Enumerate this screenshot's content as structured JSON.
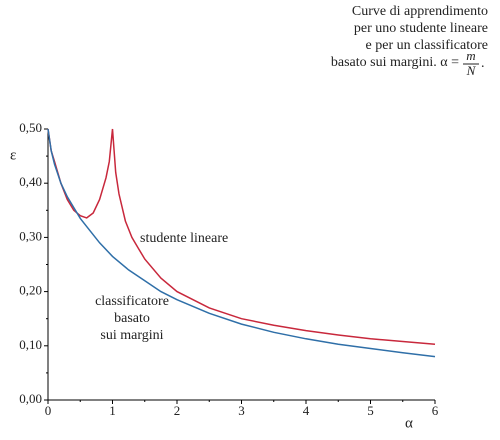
{
  "chart_data": {
    "type": "line",
    "title": [
      "Curve di apprendimento",
      "per uno studente lineare",
      "e per un classificatore",
      "basato sui margini. α ="
    ],
    "title_formula": {
      "numerator": "m",
      "denominator": "N",
      "end": "."
    },
    "xlabel": "α",
    "ylabel": "ε",
    "xlim": [
      0,
      6
    ],
    "ylim": [
      0,
      0.5
    ],
    "xticks": [
      0,
      1,
      2,
      3,
      4,
      5,
      6
    ],
    "yticks": [
      {
        "value": 0,
        "label": "0,00"
      },
      {
        "value": 0.1,
        "label": "0,10"
      },
      {
        "value": 0.2,
        "label": "0,20"
      },
      {
        "value": 0.3,
        "label": "0,30"
      },
      {
        "value": 0.4,
        "label": "0,40"
      },
      {
        "value": 0.5,
        "label": "0,50"
      }
    ],
    "yminorticks": [
      0.05,
      0.15,
      0.25,
      0.35,
      0.45
    ],
    "xminorticks": [
      0.5,
      1.5,
      2.5,
      3.5,
      4.5,
      5.5
    ],
    "grid": false,
    "series": [
      {
        "name": "studente lineare",
        "color": "#c8283c",
        "x": [
          0,
          0.05,
          0.1,
          0.2,
          0.3,
          0.4,
          0.5,
          0.6,
          0.7,
          0.8,
          0.9,
          0.95,
          1,
          1.05,
          1.1,
          1.2,
          1.3,
          1.4,
          1.5,
          1.75,
          2,
          2.5,
          3,
          3.5,
          4,
          4.5,
          5,
          5.5,
          6
        ],
        "values": [
          0.5,
          0.46,
          0.44,
          0.4,
          0.37,
          0.35,
          0.34,
          0.336,
          0.345,
          0.37,
          0.41,
          0.44,
          0.5,
          0.42,
          0.38,
          0.33,
          0.3,
          0.28,
          0.26,
          0.225,
          0.2,
          0.17,
          0.15,
          0.138,
          0.128,
          0.12,
          0.113,
          0.108,
          0.103
        ]
      },
      {
        "name": [
          "classificatore",
          "basato",
          "sui margini"
        ],
        "color": "#2f6fa8",
        "x": [
          0,
          0.05,
          0.1,
          0.2,
          0.3,
          0.4,
          0.5,
          0.6,
          0.8,
          1,
          1.25,
          1.5,
          1.75,
          2,
          2.5,
          3,
          3.5,
          4,
          4.5,
          5,
          5.5,
          6
        ],
        "values": [
          0.5,
          0.46,
          0.435,
          0.4,
          0.375,
          0.355,
          0.335,
          0.32,
          0.29,
          0.265,
          0.24,
          0.22,
          0.2,
          0.185,
          0.16,
          0.14,
          0.125,
          0.113,
          0.103,
          0.095,
          0.087,
          0.08
        ]
      }
    ]
  }
}
